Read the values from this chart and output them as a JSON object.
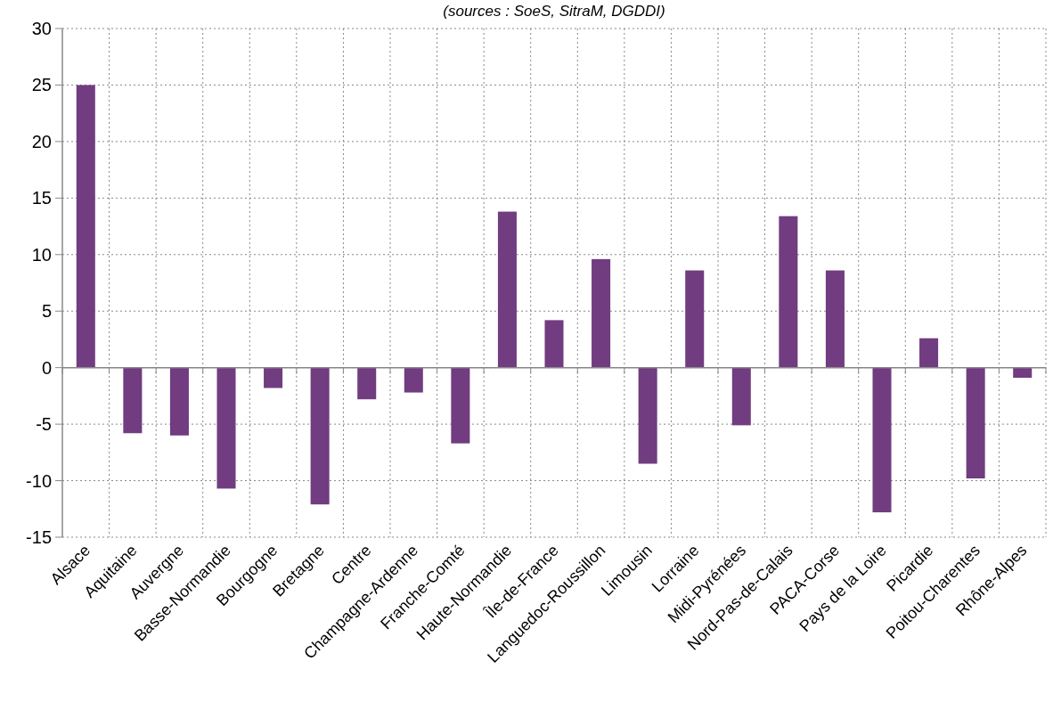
{
  "chart_data": {
    "type": "bar",
    "subtitle": "(sources : SoeS, SitraM, DGDDI)",
    "categories": [
      "Alsace",
      "Aquitaine",
      "Auvergne",
      "Basse-Normandie",
      "Bourgogne",
      "Bretagne",
      "Centre",
      "Champagne-Ardenne",
      "Franche-Comté",
      "Haute-Normandie",
      "Île-de-France",
      "Languedoc-Roussillon",
      "Limousin",
      "Lorraine",
      "Midi-Pyrénées",
      "Nord-Pas-de-Calais",
      "PACA-Corse",
      "Pays de la Loire",
      "Picardie",
      "Poitou-Charentes",
      "Rhône-Alpes"
    ],
    "values": [
      25.0,
      -5.8,
      -6.0,
      -10.7,
      -1.8,
      -12.1,
      -2.8,
      -2.2,
      -6.7,
      13.8,
      4.2,
      9.6,
      -8.5,
      8.6,
      -5.1,
      13.4,
      8.6,
      -12.8,
      2.6,
      -9.8,
      -0.9
    ],
    "color": "#713c80",
    "ylim": [
      -15,
      30
    ],
    "yticks": [
      -15,
      -10,
      -5,
      0,
      5,
      10,
      15,
      20,
      25,
      30
    ],
    "grid": true
  }
}
